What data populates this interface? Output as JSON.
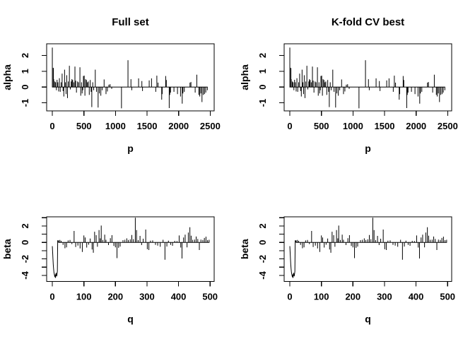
{
  "figure": {
    "background_color": "#ffffff",
    "line_color": "#000000",
    "grid": "off",
    "legend": "none"
  },
  "chart_data": {
    "type": "line",
    "subtype": "needle-spike coefficient plot, 2x2 grid; left and right columns show identical series",
    "panels": [
      {
        "title": "Full set",
        "xlabel": "p",
        "ylabel": "alpha",
        "series": "alpha",
        "row": "top",
        "xlim": [
          -90,
          2563
        ],
        "ylim": [
          -1.51,
          2.74
        ],
        "xticks": [
          0,
          500,
          1000,
          1500,
          2000,
          2500
        ],
        "xtick_labels": [
          "0",
          "500",
          "1000",
          "1500",
          "2000",
          "2500"
        ],
        "yticks": [
          -1,
          0,
          1,
          2
        ],
        "ytick_labels": [
          "-1",
          "0",
          "1",
          "2"
        ]
      },
      {
        "title": "K-fold CV best",
        "xlabel": "p",
        "ylabel": "alpha",
        "series": "alpha",
        "row": "top",
        "xlim": [
          -90,
          2563
        ],
        "ylim": [
          -1.51,
          2.74
        ],
        "xticks": [
          0,
          500,
          1000,
          1500,
          2000,
          2500
        ],
        "xtick_labels": [
          "0",
          "500",
          "1000",
          "1500",
          "2000",
          "2500"
        ],
        "yticks": [
          -1,
          0,
          1,
          2
        ],
        "ytick_labels": [
          "-1",
          "0",
          "1",
          "2"
        ]
      },
      {
        "title": "",
        "xlabel": "q",
        "ylabel": "beta",
        "series": "beta",
        "row": "bottom",
        "xlim": [
          -18,
          513
        ],
        "ylim": [
          -4.73,
          3.11
        ],
        "xticks": [
          0,
          100,
          200,
          300,
          400,
          500
        ],
        "xtick_labels": [
          "0",
          "100",
          "200",
          "300",
          "400",
          "500"
        ],
        "yticks": [
          -4,
          -3,
          -2,
          -1,
          0,
          1,
          2,
          3
        ],
        "ytick_labels": [
          "-4",
          "",
          "-2",
          "",
          "0",
          "",
          "2",
          ""
        ]
      },
      {
        "title": "",
        "xlabel": "q",
        "ylabel": "beta",
        "series": "beta",
        "row": "bottom",
        "xlim": [
          -18,
          513
        ],
        "ylim": [
          -4.73,
          3.11
        ],
        "xticks": [
          0,
          100,
          200,
          300,
          400,
          500
        ],
        "xtick_labels": [
          "0",
          "100",
          "200",
          "300",
          "400",
          "500"
        ],
        "yticks": [
          -4,
          -3,
          -2,
          -1,
          0,
          1,
          2,
          3
        ],
        "ytick_labels": [
          "-4",
          "",
          "-2",
          "",
          "0",
          "",
          "2",
          ""
        ]
      }
    ],
    "series": {
      "alpha": {
        "spikes": [
          [
            0,
            2.5
          ],
          [
            14,
            1.22
          ],
          [
            17,
            1.18
          ],
          [
            22,
            0.5
          ],
          [
            40,
            0.35
          ],
          [
            52,
            0.3
          ],
          [
            64,
            -0.2
          ],
          [
            75,
            0.46
          ],
          [
            88,
            0.3
          ],
          [
            100,
            -0.28
          ],
          [
            112,
            0.56
          ],
          [
            125,
            -0.3
          ],
          [
            140,
            0.3
          ],
          [
            155,
            0.85
          ],
          [
            170,
            -0.25
          ],
          [
            182,
            -0.6
          ],
          [
            194,
            1.1
          ],
          [
            207,
            0.3
          ],
          [
            218,
            -0.45
          ],
          [
            228,
            0.75
          ],
          [
            240,
            -0.7
          ],
          [
            252,
            0.35
          ],
          [
            270,
            1.35
          ],
          [
            285,
            -0.15
          ],
          [
            300,
            0.35
          ],
          [
            310,
            0.5
          ],
          [
            322,
            0.45
          ],
          [
            340,
            0.3
          ],
          [
            358,
            1.3
          ],
          [
            370,
            0.4
          ],
          [
            382,
            -0.35
          ],
          [
            400,
            0.35
          ],
          [
            415,
            0.3
          ],
          [
            437,
            1.25
          ],
          [
            450,
            -0.55
          ],
          [
            462,
            0.3
          ],
          [
            472,
            -0.4
          ],
          [
            482,
            -0.2
          ],
          [
            492,
            0.7
          ],
          [
            505,
            0.72
          ],
          [
            516,
            -0.55
          ],
          [
            526,
            0.5
          ],
          [
            540,
            0.45
          ],
          [
            556,
            0.3
          ],
          [
            570,
            0.35
          ],
          [
            585,
            -0.5
          ],
          [
            600,
            0.45
          ],
          [
            614,
            -0.3
          ],
          [
            625,
            -1.27
          ],
          [
            640,
            0.3
          ],
          [
            655,
            -0.2
          ],
          [
            680,
            1.1
          ],
          [
            700,
            -0.3
          ],
          [
            725,
            -1.3
          ],
          [
            745,
            -0.4
          ],
          [
            768,
            -0.55
          ],
          [
            790,
            -0.2
          ],
          [
            820,
            0.48
          ],
          [
            850,
            -0.45
          ],
          [
            872,
            -0.28
          ],
          [
            895,
            0.15
          ],
          [
            915,
            0.18
          ],
          [
            940,
            -0.12
          ],
          [
            1095,
            -1.35
          ],
          [
            1198,
            1.7
          ],
          [
            1245,
            0.5
          ],
          [
            1258,
            -0.2
          ],
          [
            1366,
            0.55
          ],
          [
            1418,
            0.38
          ],
          [
            1428,
            -0.25
          ],
          [
            1534,
            0.42
          ],
          [
            1571,
            0.55
          ],
          [
            1638,
            -0.3
          ],
          [
            1655,
            0.72
          ],
          [
            1674,
            0.28
          ],
          [
            1732,
            -0.8
          ],
          [
            1740,
            -0.45
          ],
          [
            1795,
            0.7
          ],
          [
            1805,
            0.45
          ],
          [
            1851,
            -1.33
          ],
          [
            1860,
            -0.5
          ],
          [
            1872,
            -0.35
          ],
          [
            1926,
            -0.3
          ],
          [
            1982,
            -0.45
          ],
          [
            2030,
            -0.6
          ],
          [
            2057,
            -1.05
          ],
          [
            2068,
            -0.4
          ],
          [
            2090,
            -0.3
          ],
          [
            2180,
            0.28
          ],
          [
            2195,
            0.32
          ],
          [
            2262,
            -0.35
          ],
          [
            2288,
            0.78
          ],
          [
            2320,
            -0.5
          ],
          [
            2335,
            -0.6
          ],
          [
            2352,
            -0.4
          ],
          [
            2370,
            -0.95
          ],
          [
            2390,
            -0.5
          ],
          [
            2411,
            -0.45
          ],
          [
            2430,
            -0.35
          ],
          [
            2455,
            -0.2
          ]
        ]
      },
      "beta": {
        "curve": [
          [
            0,
            -0.45
          ],
          [
            1,
            -1.2
          ],
          [
            2,
            -2.0
          ],
          [
            3,
            -2.7
          ],
          [
            4,
            -3.2
          ],
          [
            5,
            -3.6
          ],
          [
            6,
            -3.8
          ],
          [
            7,
            -4.0
          ],
          [
            8,
            -4.2
          ],
          [
            9,
            -3.9
          ],
          [
            10,
            -4.3
          ],
          [
            11,
            -4.0
          ],
          [
            12,
            -3.7
          ],
          [
            13,
            -3.9
          ],
          [
            14,
            -4.1
          ],
          [
            15,
            -3.8
          ],
          [
            16,
            -3.5
          ],
          [
            17,
            0.25
          ]
        ],
        "spikes": [
          [
            20,
            0.25
          ],
          [
            24,
            0.3
          ],
          [
            28,
            0.2
          ],
          [
            34,
            -0.3
          ],
          [
            40,
            -0.7
          ],
          [
            45,
            -0.6
          ],
          [
            50,
            0.25
          ],
          [
            56,
            0.3
          ],
          [
            62,
            -0.2
          ],
          [
            69,
            1.4
          ],
          [
            74,
            -0.55
          ],
          [
            81,
            -0.38
          ],
          [
            88,
            -0.72
          ],
          [
            95,
            -1.15
          ],
          [
            100,
            0.85
          ],
          [
            104,
            0.6
          ],
          [
            109,
            -0.62
          ],
          [
            115,
            -0.28
          ],
          [
            120,
            0.48
          ],
          [
            126,
            -0.85
          ],
          [
            130,
            -1.25
          ],
          [
            134,
            1.3
          ],
          [
            139,
            0.88
          ],
          [
            143,
            -0.52
          ],
          [
            148,
            1.5
          ],
          [
            152,
            0.5
          ],
          [
            155,
            2.05
          ],
          [
            160,
            0.3
          ],
          [
            166,
            0.95
          ],
          [
            170,
            0.32
          ],
          [
            178,
            -0.32
          ],
          [
            184,
            0.52
          ],
          [
            189,
            0.88
          ],
          [
            195,
            -0.42
          ],
          [
            200,
            -0.6
          ],
          [
            205,
            -1.9
          ],
          [
            210,
            -0.65
          ],
          [
            215,
            -0.5
          ],
          [
            224,
            0.28
          ],
          [
            230,
            0.32
          ],
          [
            236,
            0.5
          ],
          [
            241,
            0.3
          ],
          [
            247,
            0.38
          ],
          [
            252,
            0.9
          ],
          [
            257,
            0.4
          ],
          [
            263,
            3.0
          ],
          [
            267,
            1.5
          ],
          [
            272,
            0.28
          ],
          [
            278,
            0.8
          ],
          [
            283,
            -0.32
          ],
          [
            288,
            0.45
          ],
          [
            296,
            1.57
          ],
          [
            301,
            -0.82
          ],
          [
            306,
            -0.92
          ],
          [
            311,
            0.22
          ],
          [
            318,
            0.25
          ],
          [
            327,
            -0.3
          ],
          [
            334,
            -0.38
          ],
          [
            342,
            -0.52
          ],
          [
            351,
            0.32
          ],
          [
            357,
            -2.1
          ],
          [
            363,
            -0.5
          ],
          [
            368,
            0.22
          ],
          [
            375,
            -0.3
          ],
          [
            381,
            -0.4
          ],
          [
            388,
            0.2
          ],
          [
            395,
            0.18
          ],
          [
            402,
            0.85
          ],
          [
            407,
            -0.62
          ],
          [
            411,
            -1.95
          ],
          [
            416,
            0.6
          ],
          [
            421,
            0.95
          ],
          [
            427,
            -0.6
          ],
          [
            431,
            1.2
          ],
          [
            436,
            1.85
          ],
          [
            440,
            0.82
          ],
          [
            445,
            0.32
          ],
          [
            451,
            0.35
          ],
          [
            456,
            0.72
          ],
          [
            461,
            0.42
          ],
          [
            466,
            -0.92
          ],
          [
            471,
            0.35
          ],
          [
            477,
            0.3
          ],
          [
            482,
            0.55
          ],
          [
            487,
            0.7
          ],
          [
            492,
            0.28
          ],
          [
            497,
            0.32
          ]
        ]
      }
    }
  }
}
